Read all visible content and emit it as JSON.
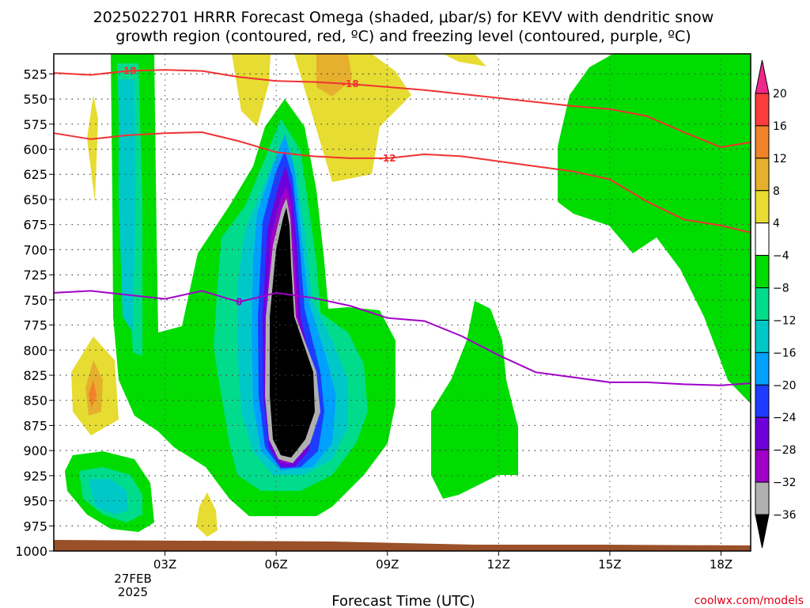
{
  "chart_data": {
    "type": "heatmap",
    "title_line1": "2025022701 HRRR Forecast Omega (shaded, μbar/s) for KEVV with dendritic snow",
    "title_line2": "growth region (contoured, red, ºC) and freezing level (contoured, purple, ºC)",
    "xlabel": "Forecast Time (UTC)",
    "ylabel": "",
    "xlim": [
      0,
      18.8
    ],
    "ylim": [
      1000,
      505
    ],
    "x_ticks": [
      {
        "x": 3,
        "label": "03Z"
      },
      {
        "x": 6,
        "label": "06Z"
      },
      {
        "x": 9,
        "label": "09Z"
      },
      {
        "x": 12,
        "label": "12Z"
      },
      {
        "x": 15,
        "label": "15Z"
      },
      {
        "x": 18,
        "label": "18Z"
      }
    ],
    "x_date_label": [
      "27FEB",
      "2025"
    ],
    "y_ticks": [
      525,
      550,
      575,
      600,
      625,
      650,
      675,
      700,
      725,
      750,
      775,
      800,
      825,
      850,
      875,
      900,
      925,
      950,
      975,
      1000
    ],
    "grid": true,
    "colorbar": {
      "levels": [
        -36,
        -32,
        -28,
        -24,
        -20,
        -16,
        -12,
        -8,
        -4,
        4,
        8,
        12,
        16,
        20
      ],
      "colors": [
        "#000000",
        "#b0b0b0",
        "#a000c8",
        "#6e00dc",
        "#1e3cff",
        "#00a0ff",
        "#00c8c8",
        "#00dc8c",
        "#00dc00",
        "#ffffff",
        "#e6dc32",
        "#e6af2d",
        "#f08228",
        "#fa3c3c",
        "#f0288c"
      ],
      "labels": [
        "20",
        "16",
        "12",
        "8",
        "4",
        "−4",
        "−8",
        "−12",
        "−16",
        "−20",
        "−24",
        "−28",
        "−32",
        "−36"
      ]
    },
    "contours": [
      {
        "label": "-18",
        "color": "#f03232",
        "points": [
          [
            0,
            524
          ],
          [
            1,
            526
          ],
          [
            2,
            522
          ],
          [
            3,
            521
          ],
          [
            4,
            522
          ],
          [
            5,
            528
          ],
          [
            6,
            532
          ],
          [
            7,
            533
          ],
          [
            8,
            535
          ],
          [
            9,
            538
          ],
          [
            10,
            541
          ],
          [
            11,
            545
          ],
          [
            12,
            549
          ],
          [
            13,
            553
          ],
          [
            14,
            557
          ],
          [
            15,
            560
          ],
          [
            16,
            567
          ],
          [
            17,
            583
          ],
          [
            18,
            598
          ],
          [
            18.8,
            593
          ]
        ]
      },
      {
        "label": "-12",
        "color": "#f03232",
        "points": [
          [
            0,
            584
          ],
          [
            1,
            590
          ],
          [
            2,
            586
          ],
          [
            3,
            584
          ],
          [
            4,
            583
          ],
          [
            5,
            592
          ],
          [
            6,
            603
          ],
          [
            7,
            607
          ],
          [
            8,
            609
          ],
          [
            9,
            609
          ],
          [
            10,
            605
          ],
          [
            11,
            607
          ],
          [
            12,
            612
          ],
          [
            13,
            617
          ],
          [
            14,
            622
          ],
          [
            15,
            630
          ],
          [
            16,
            652
          ],
          [
            17,
            670
          ],
          [
            18,
            676
          ],
          [
            18.8,
            683
          ]
        ]
      },
      {
        "label": "0",
        "color": "#a000c8",
        "points": [
          [
            0,
            743
          ],
          [
            1,
            741
          ],
          [
            2,
            745
          ],
          [
            3,
            749
          ],
          [
            4,
            741
          ],
          [
            5,
            752
          ],
          [
            6,
            743
          ],
          [
            7,
            748
          ],
          [
            8,
            756
          ],
          [
            9,
            768
          ],
          [
            10,
            771
          ],
          [
            11,
            786
          ],
          [
            12,
            805
          ],
          [
            13,
            822
          ],
          [
            14,
            827
          ],
          [
            15,
            832
          ],
          [
            16,
            832
          ],
          [
            17,
            834
          ],
          [
            18,
            835
          ],
          [
            18.8,
            833
          ]
        ]
      }
    ]
  },
  "credit": "coolwx.com/models"
}
